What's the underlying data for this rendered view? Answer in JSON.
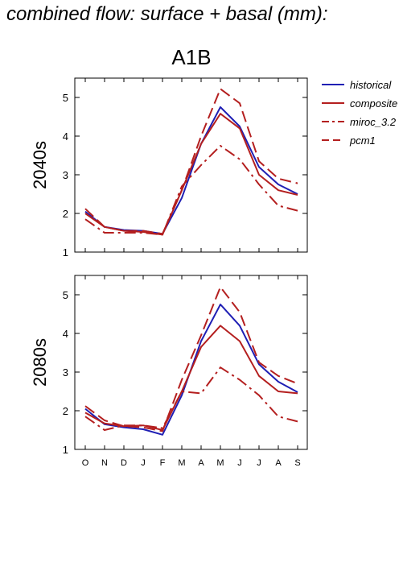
{
  "page": {
    "title": "combined flow: surface + basal (mm):"
  },
  "chart_data": {
    "type": "line",
    "title": "A1B",
    "categories": [
      "O",
      "N",
      "D",
      "J",
      "F",
      "M",
      "A",
      "M",
      "J",
      "J",
      "A",
      "S"
    ],
    "ylim": [
      1,
      5.5
    ],
    "yticks": [
      1,
      2,
      3,
      4,
      5
    ],
    "grid": false,
    "legend_placement": "right",
    "series_styles": [
      {
        "name": "historical",
        "color": "#1f1fb4",
        "dash": "solid"
      },
      {
        "name": "composite",
        "color": "#b41f1f",
        "dash": "solid"
      },
      {
        "name": "miroc_3.2",
        "color": "#b41f1f",
        "dash": "dashdot"
      },
      {
        "name": "pcm1",
        "color": "#b41f1f",
        "dash": "dashed"
      }
    ],
    "panels": [
      {
        "ylabel": "2040s",
        "series": [
          {
            "name": "historical",
            "values": [
              2.05,
              1.65,
              1.57,
              1.55,
              1.47,
              2.4,
              3.8,
              4.75,
              4.25,
              3.2,
              2.75,
              2.5
            ]
          },
          {
            "name": "composite",
            "values": [
              2.0,
              1.65,
              1.55,
              1.52,
              1.45,
              2.6,
              3.8,
              4.58,
              4.2,
              3.0,
              2.6,
              2.48
            ]
          },
          {
            "name": "miroc_3.2",
            "values": [
              1.85,
              1.5,
              1.5,
              1.5,
              1.45,
              2.7,
              3.25,
              3.75,
              3.4,
              2.75,
              2.2,
              2.07
            ]
          },
          {
            "name": "pcm1",
            "values": [
              2.12,
              1.65,
              1.55,
              1.55,
              1.47,
              2.6,
              4.0,
              5.22,
              4.85,
              3.35,
              2.9,
              2.78
            ]
          }
        ]
      },
      {
        "ylabel": "2080s",
        "series": [
          {
            "name": "historical",
            "values": [
              2.05,
              1.65,
              1.57,
              1.52,
              1.38,
              2.4,
              3.8,
              4.75,
              4.2,
              3.2,
              2.75,
              2.48
            ]
          },
          {
            "name": "composite",
            "values": [
              1.95,
              1.67,
              1.6,
              1.62,
              1.5,
              2.5,
              3.65,
              4.2,
              3.8,
              2.9,
              2.5,
              2.45
            ]
          },
          {
            "name": "miroc_3.2",
            "values": [
              1.85,
              1.5,
              1.62,
              1.62,
              1.55,
              2.5,
              2.45,
              3.12,
              2.8,
              2.4,
              1.85,
              1.72
            ]
          },
          {
            "name": "pcm1",
            "values": [
              2.12,
              1.75,
              1.6,
              1.57,
              1.47,
              2.8,
              3.95,
              5.2,
              4.55,
              3.25,
              2.9,
              2.7
            ]
          }
        ]
      }
    ]
  }
}
